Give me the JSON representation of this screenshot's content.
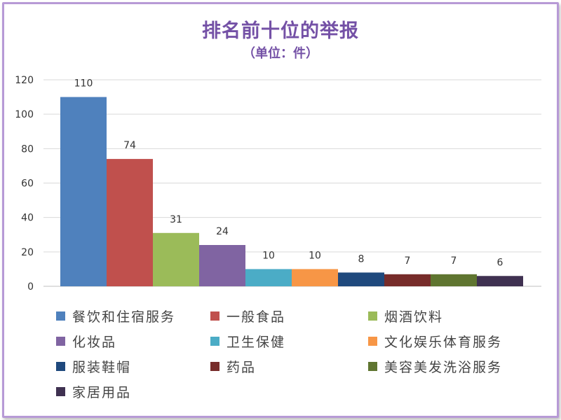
{
  "chart_data": {
    "type": "bar",
    "title": "排名前十位的举报",
    "subtitle": "（单位：件）",
    "xlabel": "",
    "ylabel": "",
    "ylim": [
      0,
      120
    ],
    "yticks": [
      "0",
      "20",
      "40",
      "60",
      "80",
      "100",
      "120"
    ],
    "grid": true,
    "legend_position": "bottom",
    "series": [
      {
        "name": "餐饮和住宿服务",
        "value": 110,
        "color": "#4f81bd"
      },
      {
        "name": "一般食品",
        "value": 74,
        "color": "#c0504d"
      },
      {
        "name": "烟酒饮料",
        "value": 31,
        "color": "#9bbb59"
      },
      {
        "name": "化妆品",
        "value": 24,
        "color": "#8064a2"
      },
      {
        "name": "卫生保健",
        "value": 10,
        "color": "#4bacc6"
      },
      {
        "name": "文化娱乐体育服务",
        "value": 10,
        "color": "#f79646"
      },
      {
        "name": "服装鞋帽",
        "value": 8,
        "color": "#1f497d"
      },
      {
        "name": "药品",
        "value": 7,
        "color": "#772c2a"
      },
      {
        "name": "美容美发洗浴服务",
        "value": 7,
        "color": "#5f7530"
      },
      {
        "name": "家居用品",
        "value": 6,
        "color": "#3f3151"
      }
    ]
  }
}
